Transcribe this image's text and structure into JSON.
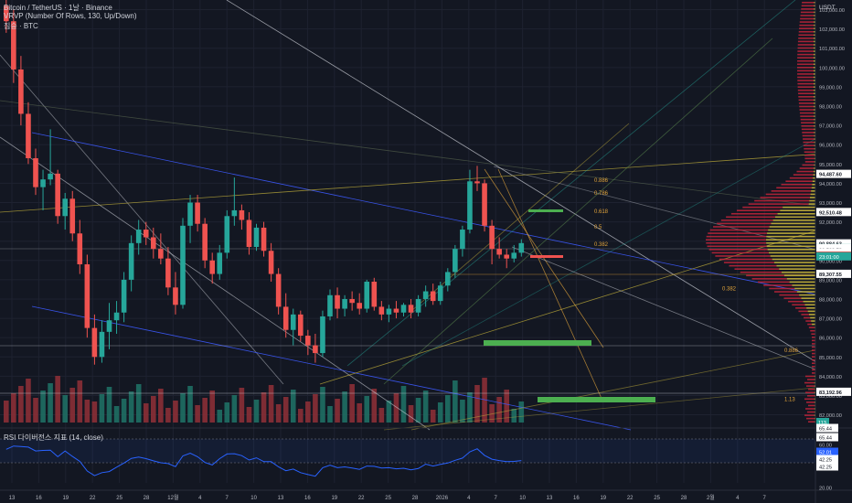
{
  "legend": {
    "line1": "Bitcoin / TetherUS · 1날 · Binance",
    "line2": "VRVP (Number Of Rows, 130, Up/Down)",
    "line3": "짐승 · BTC"
  },
  "rsi_label": "RSI 다이버전스 지표 (14, close)",
  "currency": "USDT",
  "colors": {
    "background": "#131722",
    "up": "#26a69a",
    "down": "#ef5350",
    "grid": "#1e2230",
    "rsi_line": "#2962ff",
    "vrvp_up": "#c9b53b",
    "vrvp_down": "#c2253a"
  },
  "chart_data": {
    "type": "candlestick",
    "title": "Bitcoin / TetherUS · 1날 · Binance",
    "price_axis": {
      "ticks": [
        82000,
        83000,
        84000,
        85000,
        86000,
        87000,
        88000,
        89000,
        90000,
        91000,
        92000,
        93000,
        94000,
        95000,
        96000,
        97000,
        98000,
        99000,
        100000,
        101000,
        102000,
        103000
      ],
      "tick_labels": [
        "82,000.00",
        "83,000.00",
        "84,000.00",
        "85,000.00",
        "86,000.00",
        "87,000.00",
        "88,000.00",
        "89,000.00",
        "90,000.00",
        "91,000.00",
        "92,000.00",
        "93,000.00",
        "94,000.00",
        "95,000.00",
        "96,000.00",
        "97,000.00",
        "98,000.00",
        "99,000.00",
        "100,000.00",
        "101,000.00",
        "102,000.00",
        "103,000.00"
      ],
      "range": [
        81600,
        103500
      ]
    },
    "time_axis": {
      "labels": [
        "13",
        "16",
        "19",
        "22",
        "25",
        "28",
        "12월",
        "4",
        "7",
        "10",
        "13",
        "16",
        "19",
        "22",
        "25",
        "28",
        "2026",
        "4",
        "7",
        "10",
        "13",
        "16",
        "19",
        "22",
        "25",
        "28",
        "2월",
        "4",
        "7"
      ]
    },
    "candles": [
      [
        103200,
        103900,
        101800,
        102400
      ],
      [
        102400,
        103000,
        99200,
        99900
      ],
      [
        99900,
        100600,
        97000,
        97600
      ],
      [
        97600,
        98200,
        95000,
        95300
      ],
      [
        95300,
        95800,
        93400,
        93800
      ],
      [
        93800,
        94700,
        92600,
        94200
      ],
      [
        94200,
        96800,
        93900,
        94500
      ],
      [
        94500,
        94700,
        91900,
        92300
      ],
      [
        92300,
        93500,
        91600,
        93200
      ],
      [
        93200,
        93600,
        91000,
        91400
      ],
      [
        91400,
        92100,
        89300,
        89800
      ],
      [
        89800,
        90300,
        86000,
        86500
      ],
      [
        86500,
        87200,
        84600,
        85000
      ],
      [
        85000,
        86900,
        84700,
        86300
      ],
      [
        86300,
        87800,
        85400,
        86900
      ],
      [
        86900,
        87900,
        86200,
        87300
      ],
      [
        87300,
        89400,
        86800,
        89000
      ],
      [
        89000,
        91300,
        88400,
        90900
      ],
      [
        90900,
        92100,
        90300,
        91600
      ],
      [
        91600,
        92000,
        90800,
        91200
      ],
      [
        91200,
        91700,
        90100,
        90600
      ],
      [
        90600,
        91400,
        89800,
        90100
      ],
      [
        90100,
        90700,
        88200,
        88600
      ],
      [
        88600,
        89400,
        87200,
        87700
      ],
      [
        87700,
        92200,
        87500,
        91800
      ],
      [
        91800,
        93400,
        90900,
        93000
      ],
      [
        93000,
        93400,
        91500,
        91900
      ],
      [
        91900,
        92200,
        89600,
        90000
      ],
      [
        90000,
        90400,
        88800,
        89300
      ],
      [
        89300,
        90800,
        89000,
        90400
      ],
      [
        90400,
        92600,
        90100,
        92300
      ],
      [
        92300,
        94300,
        91800,
        92600
      ],
      [
        92600,
        92900,
        91600,
        92100
      ],
      [
        92100,
        92500,
        90300,
        90700
      ],
      [
        90700,
        91900,
        90500,
        91700
      ],
      [
        91700,
        92000,
        90200,
        90500
      ],
      [
        90500,
        90900,
        88900,
        89300
      ],
      [
        89300,
        89600,
        87200,
        87600
      ],
      [
        87600,
        88300,
        86000,
        86400
      ],
      [
        86400,
        87500,
        85600,
        87200
      ],
      [
        87200,
        87400,
        85800,
        86100
      ],
      [
        86100,
        86400,
        85100,
        85600
      ],
      [
        85600,
        86200,
        84700,
        85200
      ],
      [
        85200,
        87400,
        85000,
        87100
      ],
      [
        87100,
        88500,
        86900,
        88200
      ],
      [
        88200,
        88600,
        87000,
        87500
      ],
      [
        87500,
        88200,
        87100,
        88000
      ],
      [
        88000,
        88400,
        87400,
        87800
      ],
      [
        87800,
        88300,
        87200,
        87500
      ],
      [
        87500,
        89000,
        87300,
        88900
      ],
      [
        88900,
        89100,
        87400,
        87600
      ],
      [
        87600,
        87900,
        86900,
        87200
      ],
      [
        87200,
        87700,
        86800,
        87500
      ],
      [
        87500,
        87900,
        87000,
        87300
      ],
      [
        87300,
        87800,
        87100,
        87700
      ],
      [
        87700,
        88000,
        87000,
        87300
      ],
      [
        87300,
        88200,
        87100,
        88000
      ],
      [
        88000,
        88700,
        87600,
        88400
      ],
      [
        88400,
        88800,
        87700,
        87900
      ],
      [
        87900,
        88900,
        87700,
        88700
      ],
      [
        88700,
        89600,
        88400,
        89400
      ],
      [
        89400,
        90800,
        89100,
        90600
      ],
      [
        90600,
        91800,
        90200,
        91600
      ],
      [
        91600,
        94700,
        91400,
        94100
      ],
      [
        94100,
        94900,
        93600,
        94000
      ],
      [
        94000,
        94200,
        91500,
        91800
      ],
      [
        91800,
        92100,
        89800,
        90600
      ],
      [
        90600,
        91200,
        90100,
        90300
      ],
      [
        90300,
        90600,
        89600,
        90100
      ],
      [
        90100,
        90800,
        89900,
        90400
      ],
      [
        90400,
        91100,
        90200,
        90900
      ]
    ],
    "volume_note": "volume bars shown below price",
    "horizontal_levels": [
      {
        "price": 94487.6,
        "label": "94,487.60",
        "color": "#ffffff",
        "text": "#131722"
      },
      {
        "price": 92510.48,
        "label": "92,510.48",
        "color": "#ffffff",
        "text": "#131722"
      },
      {
        "price": 90884.63,
        "label": "90,884.63",
        "color": "#ffffff",
        "text": "#131722"
      },
      {
        "price": 90640.44,
        "label": "90,640.44",
        "color": "#26a69a",
        "text": "#ffffff"
      },
      {
        "price": 90640.37,
        "label": "90,640.37",
        "color": "#ffffff",
        "text": "#131722"
      },
      {
        "price": 90562.78,
        "label": "90,562.78",
        "color": "#ffffff",
        "text": "#131722"
      },
      {
        "price": 90402.82,
        "label": "90,402.82",
        "color": "#ffffff",
        "text": "#131722"
      },
      {
        "price": 90251.05,
        "label": "90,251.05",
        "color": "#ef5350",
        "text": "#ffffff"
      },
      {
        "price": 89307.55,
        "label": "89,307.55",
        "color": "#ffffff",
        "text": "#131722"
      },
      {
        "price": 83192.96,
        "label": "83,192.96",
        "color": "#ffffff",
        "text": "#131722"
      }
    ],
    "countdown_label": "23:01:00",
    "volume_badge": "113",
    "fib_labels": [
      {
        "price": 94200,
        "text": "0.886"
      },
      {
        "price": 93550,
        "text": "0.786"
      },
      {
        "price": 92600,
        "text": "0.618"
      },
      {
        "price": 91800,
        "text": "0.5"
      },
      {
        "price": 90900,
        "text": "0.382"
      },
      {
        "price": 88600,
        "text": "0.382"
      },
      {
        "price": 85400,
        "text": "0.886"
      },
      {
        "price": 82850,
        "text": "1.13"
      }
    ],
    "rsi": {
      "tick_labels": [
        "65.44",
        "65.44",
        "60.00",
        "52.01",
        "42.25",
        "42.25",
        "20.00"
      ],
      "current": "52.01"
    }
  }
}
